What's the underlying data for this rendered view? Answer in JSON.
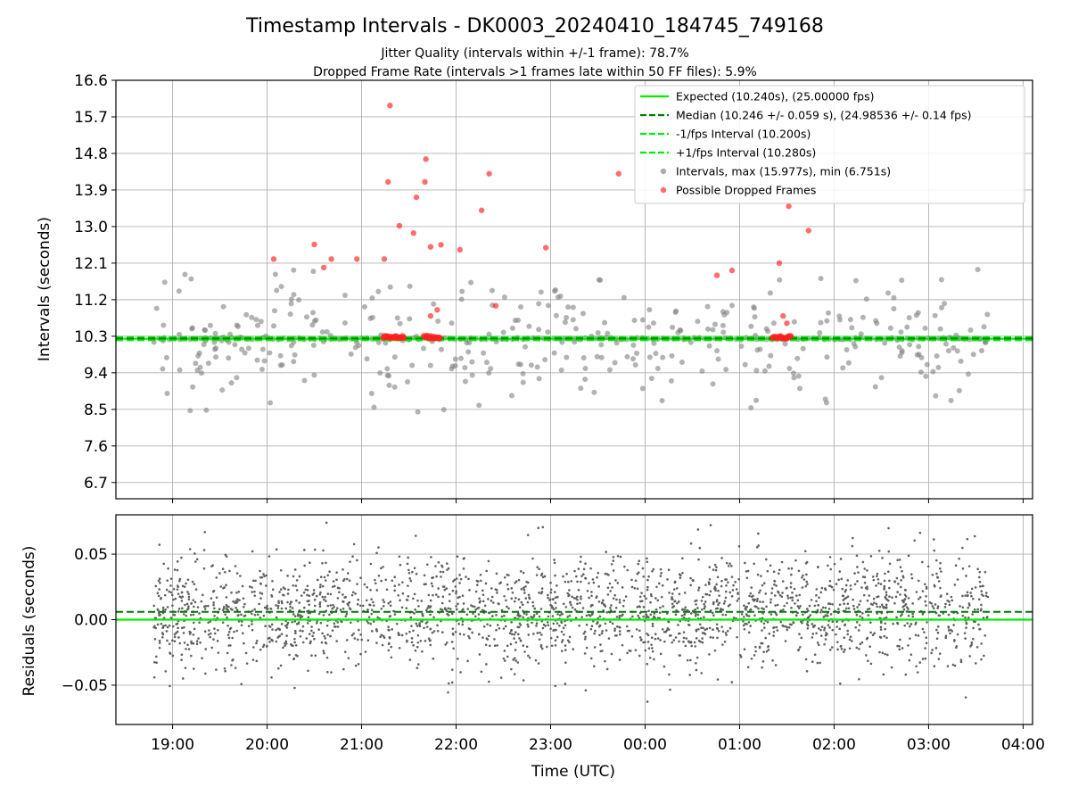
{
  "chart_data": {
    "type": "scatter",
    "title": "Timestamp Intervals - DK0003_20240410_184745_749168",
    "subtitle_1": "Jitter Quality (intervals within +/-1 frame): 78.7%",
    "subtitle_2": "Dropped Frame Rate (intervals >1 frames late within 50 FF files): 5.9%",
    "xlabel": "Time (UTC)",
    "x_ticks": [
      "19:00",
      "20:00",
      "21:00",
      "22:00",
      "23:00",
      "00:00",
      "01:00",
      "02:00",
      "03:00",
      "04:00"
    ],
    "x_range_hours": [
      18.4,
      28.1
    ],
    "data_x_range_hours": [
      18.8,
      27.63
    ],
    "grid": true,
    "legend_position": "top-right",
    "top_panel": {
      "ylabel": "Intervals (seconds)",
      "y_ticks": [
        "6.7",
        "7.6",
        "8.5",
        "9.4",
        "10.3",
        "11.2",
        "12.1",
        "13.0",
        "13.9",
        "14.8",
        "15.7",
        "16.6"
      ],
      "ylim": [
        6.3,
        16.6
      ],
      "expected_interval": 10.24,
      "median_interval": 10.246,
      "minus_1fps_interval": 10.2,
      "plus_1fps_interval": 10.28,
      "max_interval": 15.977,
      "min_interval": 6.751,
      "dropped_frames_sample": [
        {
          "x": 20.07,
          "y": 12.2
        },
        {
          "x": 20.5,
          "y": 12.56
        },
        {
          "x": 20.6,
          "y": 11.99
        },
        {
          "x": 20.68,
          "y": 12.2
        },
        {
          "x": 20.95,
          "y": 12.2
        },
        {
          "x": 21.24,
          "y": 12.2
        },
        {
          "x": 21.28,
          "y": 14.1
        },
        {
          "x": 21.3,
          "y": 15.98
        },
        {
          "x": 21.4,
          "y": 13.02
        },
        {
          "x": 21.55,
          "y": 12.84
        },
        {
          "x": 21.58,
          "y": 13.72
        },
        {
          "x": 21.67,
          "y": 14.1
        },
        {
          "x": 21.68,
          "y": 14.66
        },
        {
          "x": 21.73,
          "y": 12.5
        },
        {
          "x": 21.84,
          "y": 12.55
        },
        {
          "x": 22.04,
          "y": 12.43
        },
        {
          "x": 22.27,
          "y": 13.4
        },
        {
          "x": 22.35,
          "y": 14.3
        },
        {
          "x": 22.42,
          "y": 11.05
        },
        {
          "x": 22.95,
          "y": 12.48
        },
        {
          "x": 23.72,
          "y": 14.3
        },
        {
          "x": 24.76,
          "y": 11.8
        },
        {
          "x": 24.92,
          "y": 11.92
        },
        {
          "x": 25.42,
          "y": 12.1
        },
        {
          "x": 25.52,
          "y": 13.5
        },
        {
          "x": 25.73,
          "y": 12.9
        },
        {
          "x": 25.46,
          "y": 10.8
        },
        {
          "x": 25.5,
          "y": 10.62
        },
        {
          "x": 21.73,
          "y": 10.8
        },
        {
          "x": 21.8,
          "y": 10.95
        }
      ],
      "dropped_frame_clusters": [
        {
          "x_start": 21.23,
          "x_end": 21.45,
          "y": 10.28
        },
        {
          "x_start": 21.66,
          "x_end": 21.83,
          "y": 10.28
        },
        {
          "x_start": 25.35,
          "x_end": 25.55,
          "y": 10.27
        }
      ]
    },
    "bottom_panel": {
      "ylabel": "Residuals (seconds)",
      "y_ticks": [
        "−0.05",
        "0.00",
        "0.05"
      ],
      "ylim": [
        -0.08,
        0.08
      ],
      "expected_residual": 0.0,
      "median_residual": 0.006
    },
    "legend": [
      {
        "label": "Expected (10.240s), (25.00000 fps)",
        "style": "solid",
        "color": "#00ee00"
      },
      {
        "label": "Median (10.246 +/- 0.059 s), (24.98536 +/- 0.14 fps)",
        "style": "dashed",
        "color": "#007a00"
      },
      {
        "label": "-1/fps Interval (10.200s)",
        "style": "dashed",
        "color": "#00ee00"
      },
      {
        "label": "+1/fps Interval (10.280s)",
        "style": "dashed",
        "color": "#00ee00"
      },
      {
        "label": "Intervals, max (15.977s), min (6.751s)",
        "style": "dot",
        "color": "#808080"
      },
      {
        "label": "Possible Dropped Frames",
        "style": "dot",
        "color": "#ff2020"
      }
    ],
    "colors": {
      "expected": "#00ee00",
      "median": "#007a00",
      "interval_points": "#808080",
      "dropped_points": "#ff2020",
      "residual_points": "#606060",
      "grid": "#b0b0b0"
    }
  }
}
